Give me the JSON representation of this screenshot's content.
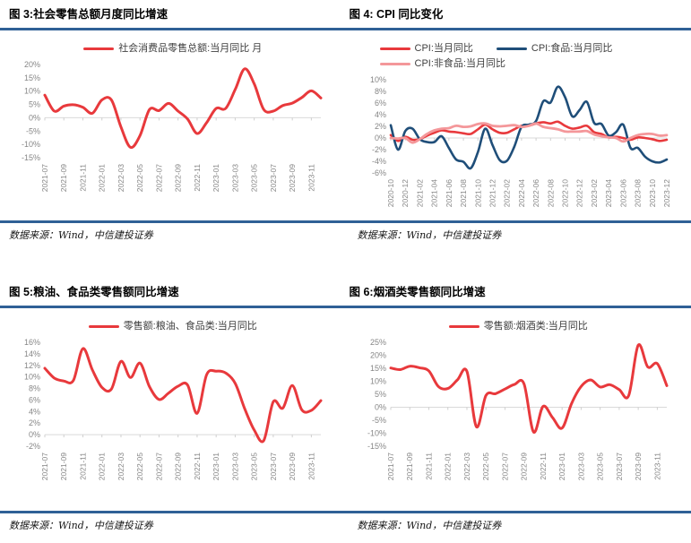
{
  "page": {
    "background": "#ffffff",
    "accent_line_color": "#2f6096",
    "source_note": "数据来源：Wind，中信建投证券"
  },
  "figures": [
    {
      "title": "图 3:社会零售总额月度同比增速",
      "source": "数据来源：Wind，中信建投证券"
    },
    {
      "title": "图 4: CPI 同比变化",
      "source": "数据来源：Wind，中信建投证券"
    },
    {
      "title": "图 5:粮油、食品类零售额同比增速",
      "source": "数据来源：Wind，中信建投证券"
    },
    {
      "title": "图 6:烟酒类零售额同比增速",
      "source": "数据来源：Wind，中信建投证券"
    }
  ],
  "chart_data": [
    {
      "type": "line",
      "title": "图 3:社会零售总额月度同比增速",
      "unit": "%",
      "yticks": [
        20,
        15,
        10,
        5,
        0,
        -5,
        -10,
        -15
      ],
      "ylim": [
        -15,
        20
      ],
      "x": [
        "2021-07",
        "2021-08",
        "2021-09",
        "2021-10",
        "2021-11",
        "2021-12",
        "2022-01",
        "2022-02",
        "2022-03",
        "2022-04",
        "2022-05",
        "2022-06",
        "2022-07",
        "2022-08",
        "2022-09",
        "2022-10",
        "2022-11",
        "2022-12",
        "2023-01",
        "2023-02",
        "2023-03",
        "2023-04",
        "2023-05",
        "2023-06",
        "2023-07",
        "2023-08",
        "2023-09",
        "2023-10",
        "2023-11",
        "2023-12"
      ],
      "x_tick_labels": [
        "2021-07",
        "2021-09",
        "2021-11",
        "2022-01",
        "2022-03",
        "2022-05",
        "2022-07",
        "2022-09",
        "2022-11",
        "2023-01",
        "2023-03",
        "2023-05",
        "2023-07",
        "2023-09",
        "2023-11"
      ],
      "legend_position": "top",
      "series": [
        {
          "name": "社会消费品零售总额:当月同比 月",
          "color": "#e8393c",
          "values": [
            8.5,
            2.5,
            4.4,
            4.9,
            3.9,
            1.7,
            6.7,
            6.7,
            -3.5,
            -11.1,
            -6.7,
            3.1,
            2.7,
            5.4,
            2.5,
            -0.5,
            -5.9,
            -1.8,
            3.5,
            3.5,
            10.6,
            18.4,
            12.7,
            3.1,
            2.5,
            4.6,
            5.5,
            7.6,
            10.1,
            7.4
          ]
        }
      ]
    },
    {
      "type": "line",
      "title": "图 4: CPI 同比变化",
      "unit": "%",
      "yticks": [
        10,
        8,
        6,
        4,
        2,
        0,
        -2,
        -4,
        -6
      ],
      "ylim": [
        -6,
        10
      ],
      "x": [
        "2020-10",
        "2020-11",
        "2020-12",
        "2021-01",
        "2021-02",
        "2021-03",
        "2021-04",
        "2021-05",
        "2021-06",
        "2021-07",
        "2021-08",
        "2021-09",
        "2021-10",
        "2021-11",
        "2021-12",
        "2022-01",
        "2022-02",
        "2022-03",
        "2022-04",
        "2022-05",
        "2022-06",
        "2022-07",
        "2022-08",
        "2022-09",
        "2022-10",
        "2022-11",
        "2022-12",
        "2023-01",
        "2023-02",
        "2023-03",
        "2023-04",
        "2023-05",
        "2023-06",
        "2023-07",
        "2023-08",
        "2023-09",
        "2023-10",
        "2023-11",
        "2023-12"
      ],
      "x_tick_labels": [
        "2020-10",
        "2020-12",
        "2021-02",
        "2021-04",
        "2021-06",
        "2021-08",
        "2021-10",
        "2021-12",
        "2022-02",
        "2022-04",
        "2022-06",
        "2022-08",
        "2022-10",
        "2022-12",
        "2023-02",
        "2023-04",
        "2023-06",
        "2023-08",
        "2023-10",
        "2023-12"
      ],
      "legend_position": "top",
      "series": [
        {
          "name": "CPI:当月同比",
          "color": "#e8393c",
          "values": [
            0.5,
            -0.5,
            0.2,
            -0.3,
            -0.2,
            0.4,
            0.9,
            1.3,
            1.1,
            1.0,
            0.8,
            0.7,
            1.5,
            2.3,
            1.5,
            0.9,
            0.9,
            1.5,
            2.1,
            2.1,
            2.5,
            2.7,
            2.5,
            2.8,
            2.1,
            1.6,
            1.8,
            2.1,
            1.0,
            0.7,
            0.1,
            0.2,
            0.0,
            -0.3,
            0.1,
            0.0,
            -0.2,
            -0.5,
            -0.3
          ]
        },
        {
          "name": "CPI:食品:当月同比",
          "color": "#1f4e79",
          "values": [
            2.2,
            -2.0,
            1.2,
            1.6,
            -0.2,
            -0.7,
            -0.7,
            0.3,
            -1.7,
            -3.7,
            -4.1,
            -5.2,
            -2.4,
            1.6,
            -1.2,
            -3.8,
            -3.9,
            -1.5,
            1.9,
            2.3,
            2.9,
            6.3,
            6.1,
            8.8,
            7.0,
            3.7,
            4.8,
            6.2,
            2.6,
            2.4,
            0.4,
            1.0,
            2.3,
            -1.7,
            -1.7,
            -3.2,
            -4.0,
            -4.2,
            -3.7
          ]
        },
        {
          "name": "CPI:非食品:当月同比",
          "color": "#f4979a",
          "values": [
            0.0,
            -0.1,
            0.0,
            -0.8,
            -0.2,
            0.7,
            1.3,
            1.6,
            1.7,
            2.1,
            1.9,
            2.0,
            2.4,
            2.5,
            2.1,
            2.0,
            2.1,
            2.2,
            1.9,
            2.1,
            2.5,
            1.9,
            1.7,
            1.5,
            1.1,
            1.1,
            1.1,
            1.2,
            0.6,
            0.3,
            0.1,
            0.0,
            -0.6,
            0.0,
            0.5,
            0.7,
            0.7,
            0.4,
            0.5
          ]
        }
      ]
    },
    {
      "type": "line",
      "title": "图 5:粮油、食品类零售额同比增速",
      "unit": "%",
      "yticks": [
        16,
        14,
        12,
        10,
        8,
        6,
        4,
        2,
        0,
        -2
      ],
      "ylim": [
        -2,
        16
      ],
      "x": [
        "2021-07",
        "2021-08",
        "2021-09",
        "2021-10",
        "2021-11",
        "2021-12",
        "2022-01",
        "2022-02",
        "2022-03",
        "2022-04",
        "2022-05",
        "2022-06",
        "2022-07",
        "2022-08",
        "2022-09",
        "2022-10",
        "2022-11",
        "2022-12",
        "2023-01",
        "2023-02",
        "2023-03",
        "2023-04",
        "2023-05",
        "2023-06",
        "2023-07",
        "2023-08",
        "2023-09",
        "2023-10",
        "2023-11",
        "2023-12"
      ],
      "x_tick_labels": [
        "2021-07",
        "2021-09",
        "2021-11",
        "2022-01",
        "2022-03",
        "2022-05",
        "2022-07",
        "2022-09",
        "2022-11",
        "2023-01",
        "2023-03",
        "2023-05",
        "2023-07",
        "2023-09",
        "2023-11"
      ],
      "legend_position": "top",
      "series": [
        {
          "name": "零售额:粮油、食品类:当月同比",
          "color": "#e8393c",
          "values": [
            11.5,
            9.8,
            9.3,
            9.4,
            14.9,
            11.2,
            8.2,
            7.9,
            12.7,
            9.9,
            12.4,
            8.3,
            6.1,
            7.2,
            8.4,
            8.6,
            3.7,
            10.4,
            11.0,
            10.7,
            8.9,
            4.5,
            0.8,
            -1.0,
            5.7,
            4.6,
            8.5,
            4.3,
            4.2,
            5.9
          ]
        }
      ]
    },
    {
      "type": "line",
      "title": "图 6:烟酒类零售额同比增速",
      "unit": "%",
      "yticks": [
        25,
        20,
        15,
        10,
        5,
        0,
        -5,
        -10,
        -15
      ],
      "ylim": [
        -15,
        25
      ],
      "x": [
        "2021-07",
        "2021-08",
        "2021-09",
        "2021-10",
        "2021-11",
        "2021-12",
        "2022-01",
        "2022-02",
        "2022-03",
        "2022-04",
        "2022-05",
        "2022-06",
        "2022-07",
        "2022-08",
        "2022-09",
        "2022-10",
        "2022-11",
        "2022-12",
        "2023-01",
        "2023-02",
        "2023-03",
        "2023-04",
        "2023-05",
        "2023-06",
        "2023-07",
        "2023-08",
        "2023-09",
        "2023-10",
        "2023-11",
        "2023-12"
      ],
      "x_tick_labels": [
        "2021-07",
        "2021-09",
        "2021-11",
        "2022-01",
        "2022-03",
        "2022-05",
        "2022-07",
        "2022-09",
        "2022-11",
        "2023-01",
        "2023-03",
        "2023-05",
        "2023-07",
        "2023-09",
        "2023-11"
      ],
      "legend_position": "top",
      "series": [
        {
          "name": "零售额:烟酒类:当月同比",
          "color": "#e8393c",
          "values": [
            15.1,
            14.5,
            15.8,
            15.2,
            14.0,
            8.0,
            7.2,
            10.5,
            13.8,
            -7.5,
            4.5,
            5.2,
            7.0,
            8.8,
            9.0,
            -9.5,
            0.3,
            -4.0,
            -8.0,
            1.5,
            8.0,
            10.5,
            7.8,
            8.7,
            6.8,
            4.5,
            23.9,
            15.5,
            16.8,
            8.3
          ]
        }
      ]
    }
  ]
}
